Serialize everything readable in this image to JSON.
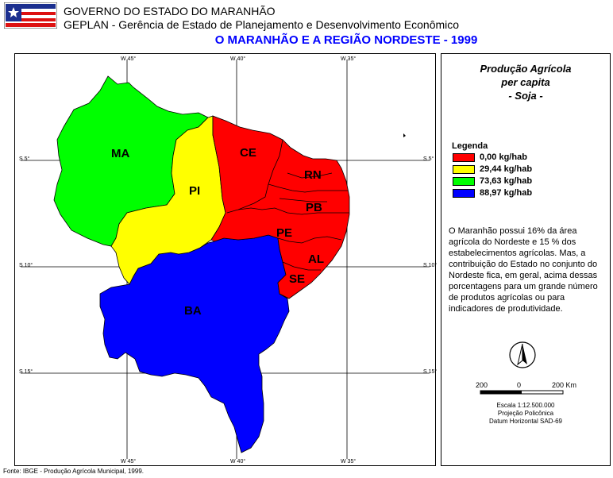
{
  "header": {
    "line1": "GOVERNO DO ESTADO DO MARANHÃO",
    "line2": "GEPLAN - Gerência de Estado de Planejamento e Desenvolvimento Econômico",
    "map_title": "O MARANHÃO E A REGIÃO NORDESTE - 1999"
  },
  "coords": {
    "top": [
      "W 45°",
      "W 40°",
      "W 35°"
    ],
    "bottom": [
      "W 45°",
      "W 40°",
      "W 35°"
    ],
    "left": [
      "S 5°",
      "S 10°",
      "S 15°"
    ],
    "right": [
      "S 5°",
      "S 10°",
      "S 15°"
    ]
  },
  "sidebar": {
    "title1": "Produção Agrícola",
    "title2": "per capita",
    "title3": "- Soja -",
    "legend_title": "Legenda",
    "legend": [
      {
        "label": "0,00 kg/hab",
        "color": "#ff0000"
      },
      {
        "label": "29,44 kg/hab",
        "color": "#ffff00"
      },
      {
        "label": "73,63 kg/hab",
        "color": "#00ff00"
      },
      {
        "label": "88,97 kg/hab",
        "color": "#0000ff"
      }
    ],
    "paragraph": "O Maranhão possui 16% da área agrícola do Nordeste e 15 % dos estabelecimentos agrícolas. Mas, a contribuição do Estado no conjunto do Nordeste fica, em geral, acima dessas porcentagens para um grande número de produtos agrícolas ou para indicadores de produtividade.",
    "compass_letter": "N",
    "scale_labels": [
      "200",
      "0",
      "200 Km"
    ],
    "scale_text": "Escala 1:12.500.000",
    "projection": "Projeção Policônica",
    "datum": "Datum Horizontal SAD-69"
  },
  "states": {
    "MA": "MA",
    "PI": "PI",
    "CE": "CE",
    "RN": "RN",
    "PB": "PB",
    "PE": "PE",
    "AL": "AL",
    "SE": "SE",
    "BA": "BA"
  },
  "footer": "Fonte: IBGE - Produção Agrícola Municipal, 1999."
}
